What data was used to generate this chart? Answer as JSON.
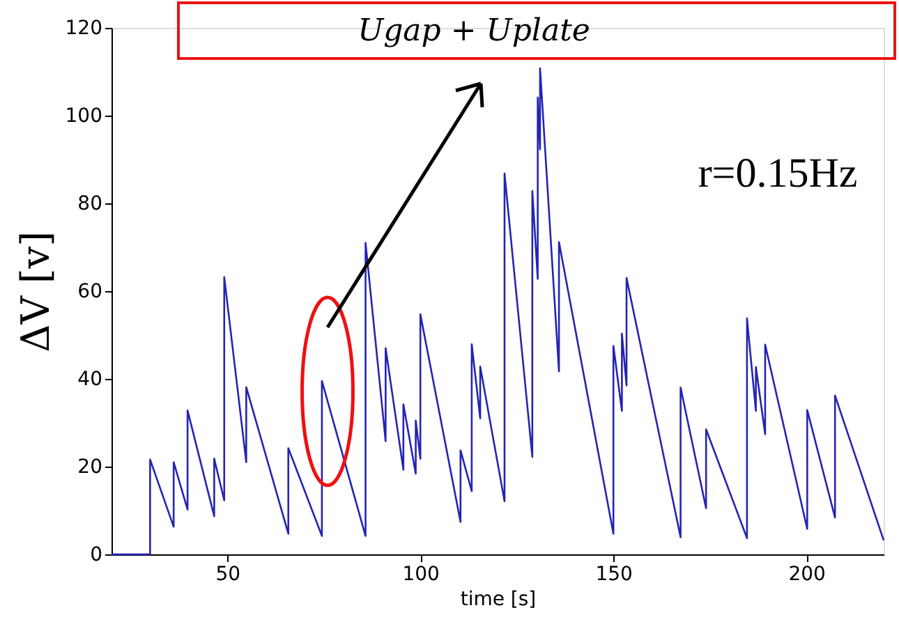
{
  "chart_data": {
    "type": "line",
    "xlabel": "time [s]",
    "ylabel": "ΔV [v]",
    "x": [
      20,
      30,
      30,
      36.1,
      36.1,
      39.7,
      39.7,
      46.6,
      46.6,
      49.2,
      49.2,
      54.9,
      54.9,
      65.8,
      65.8,
      74.5,
      74.5,
      85.8,
      85.8,
      91,
      91,
      95.6,
      95.6,
      98.8,
      98.8,
      100,
      100,
      110.4,
      110.4,
      113.3,
      113.3,
      115.5,
      115.5,
      121.8,
      121.8,
      129,
      129,
      130.4,
      130.4,
      131,
      131,
      135.9,
      135.9,
      150,
      150,
      152.2,
      152.2,
      153.4,
      153.4,
      167.4,
      167.4,
      174,
      174,
      184.6,
      184.6,
      186.9,
      186.9,
      189.3,
      189.3,
      200.2,
      200.2,
      207.4,
      207.4,
      220
    ],
    "series": [
      {
        "color": "#2424b4",
        "values": [
          0,
          0,
          21.6,
          6.3,
          21,
          10.2,
          32.8,
          8.7,
          21.8,
          12.3,
          63.2,
          21,
          38.1,
          4.7,
          24.2,
          4.2,
          39.5,
          4.2,
          71,
          25.8,
          47,
          19.3,
          34.2,
          18.4,
          30.5,
          21.8,
          54.7,
          7.4,
          23.7,
          14.4,
          47.9,
          31,
          42.8,
          12.1,
          86.8,
          22.2,
          82.8,
          62.8,
          104.1,
          92.3,
          110.8,
          41.7,
          71.2,
          4.7,
          47.5,
          32.7,
          50.3,
          38.5,
          63,
          3.9,
          38,
          10.5,
          28.5,
          3.7,
          53.8,
          32.7,
          42.7,
          27.4,
          47.8,
          5.8,
          32.9,
          8.4,
          36.2,
          3.2
        ]
      }
    ],
    "xlim": [
      20,
      220
    ],
    "xticks": [
      50,
      100,
      150,
      200
    ],
    "ylim": [
      0,
      120
    ],
    "yticks": [
      0,
      20,
      40,
      60,
      80,
      100,
      120
    ],
    "grid": false,
    "marker": "none",
    "line_style": "solid",
    "annotations": [
      "Ugap + Uplate",
      "r=0.15Hz"
    ]
  }
}
